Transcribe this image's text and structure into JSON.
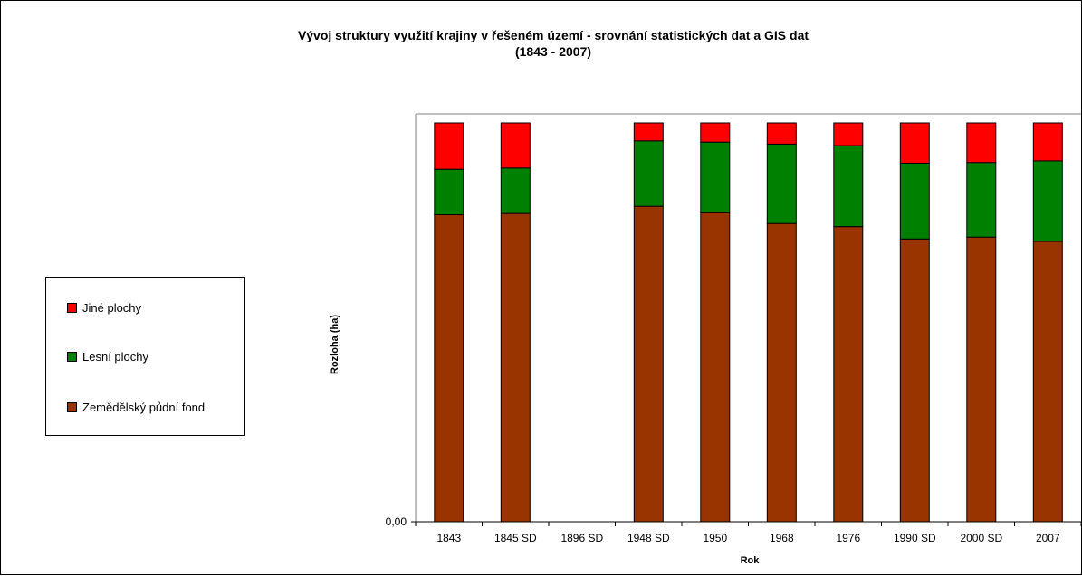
{
  "chart_data": {
    "type": "bar",
    "stacked": true,
    "title": "Vývoj struktury využití krajiny v řešeném území - srovnání statistických dat a GIS dat",
    "subtitle": "(1843 -  2007)",
    "xlabel": "Rok",
    "ylabel": "Rozloha (ha)",
    "y_tick_labels": [
      "0,00"
    ],
    "ylim": [
      0,
      100
    ],
    "grid": false,
    "legend_position": "left",
    "categories": [
      "1843",
      "1845 SD",
      "1896 SD",
      "1948 SD",
      "1950",
      "1968",
      "1976",
      "1990 SD",
      "2000 SD",
      "2007"
    ],
    "series": [
      {
        "name": "Zemědělský půdní fond",
        "color": "#993300",
        "values": [
          77.0,
          77.3,
          0,
          79.1,
          77.5,
          74.8,
          74.0,
          70.9,
          71.4,
          70.3
        ]
      },
      {
        "name": "Lesní plochy",
        "color": "#008000",
        "values": [
          11.4,
          11.4,
          0,
          16.4,
          17.7,
          19.9,
          20.3,
          19.0,
          18.7,
          20.2
        ]
      },
      {
        "name": "Jiné plochy",
        "color": "#ff0000",
        "values": [
          11.6,
          11.3,
          0,
          4.5,
          4.8,
          5.3,
          5.7,
          10.1,
          9.9,
          9.5
        ]
      }
    ]
  }
}
